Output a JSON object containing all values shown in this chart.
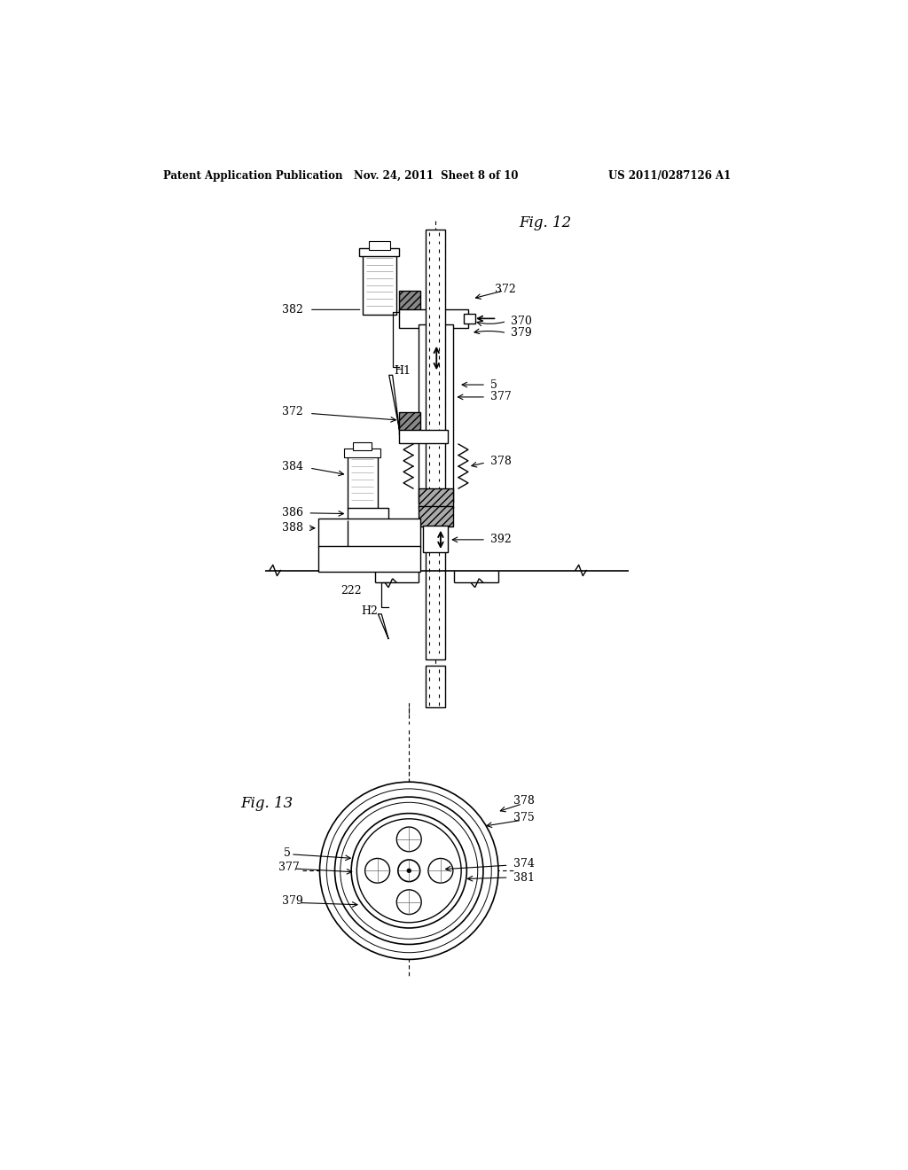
{
  "background_color": "#ffffff",
  "line_color": "#000000",
  "header_left": "Patent Application Publication",
  "header_mid": "Nov. 24, 2011  Sheet 8 of 10",
  "header_right": "US 2011/0287126 A1",
  "fig12_label": "Fig. 12",
  "fig13_label": "Fig. 13"
}
